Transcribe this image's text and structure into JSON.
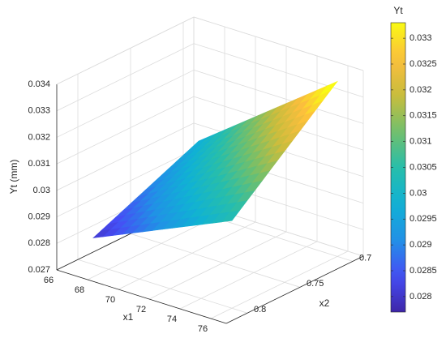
{
  "chart_data": {
    "type": "surface",
    "colormap": "parula",
    "grid": true,
    "x_label": "x1",
    "y_label": "x2",
    "z_label": "Yt (mm)",
    "colorbar_label": "Yt",
    "x": [
      67,
      76
    ],
    "y": [
      0.7,
      0.8
    ],
    "z": [
      [
        0.0297,
        0.0336
      ],
      [
        0.028,
        0.0303
      ]
    ],
    "xlim": [
      66,
      77
    ],
    "ylim": [
      0.69,
      0.82
    ],
    "zlim": [
      0.027,
      0.034
    ],
    "xticks": [
      66,
      68,
      70,
      72,
      74,
      76
    ],
    "yticks": [
      0.7,
      0.75,
      0.8
    ],
    "zticks": [
      0.027,
      0.028,
      0.029,
      0.03,
      0.031,
      0.032,
      0.033,
      0.034
    ],
    "clim": [
      0.0277,
      0.0333
    ],
    "cticks": [
      0.028,
      0.0285,
      0.029,
      0.0295,
      0.03,
      0.0305,
      0.031,
      0.0315,
      0.032,
      0.0325,
      0.033
    ]
  }
}
